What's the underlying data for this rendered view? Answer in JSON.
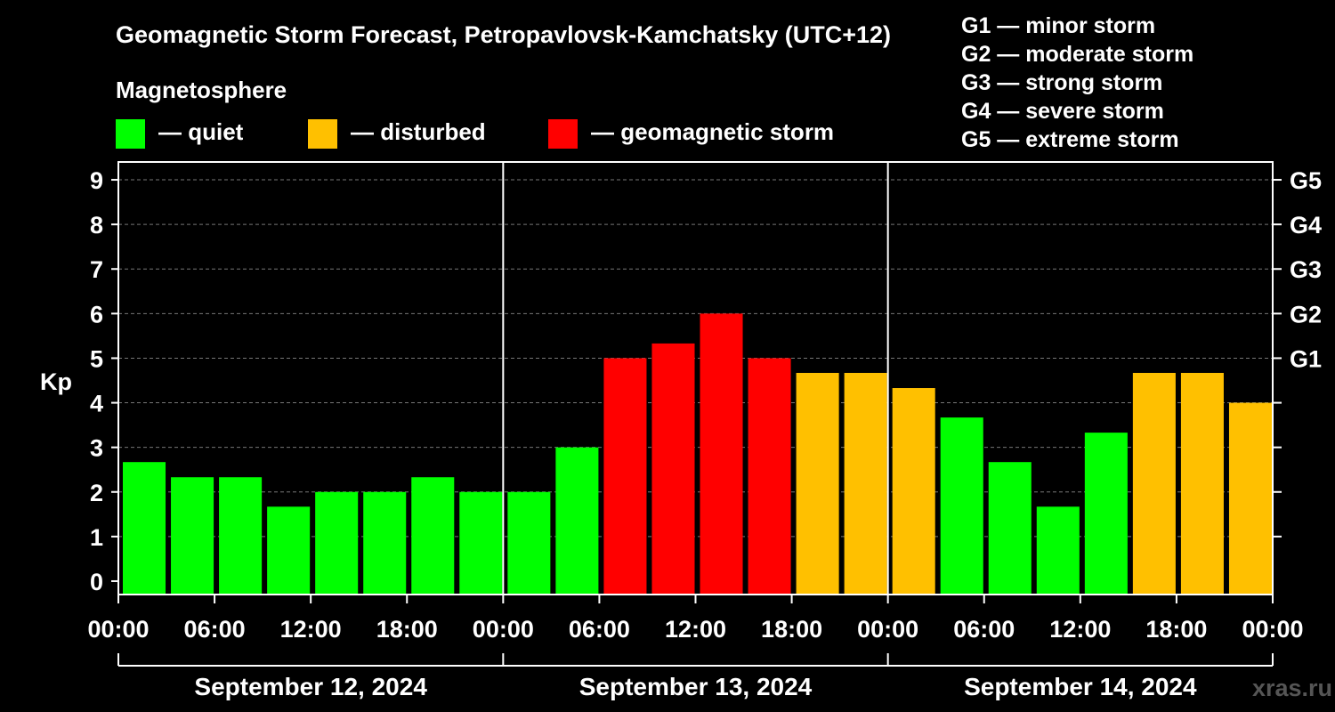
{
  "chart_data": {
    "type": "bar",
    "title": "Geomagnetic Storm Forecast, Petropavlovsk-Kamchatsky (UTC+12)",
    "ylabel": "Kp",
    "ylim": [
      -0.3,
      9.4
    ],
    "y_ticks": [
      "0",
      "1",
      "2",
      "3",
      "4",
      "5",
      "6",
      "7",
      "8",
      "9"
    ],
    "right_axis_labels": [
      {
        "kp": 5,
        "label": "G1"
      },
      {
        "kp": 6,
        "label": "G2"
      },
      {
        "kp": 7,
        "label": "G3"
      },
      {
        "kp": 8,
        "label": "G4"
      },
      {
        "kp": 9,
        "label": "G5"
      }
    ],
    "x_tick_labels": [
      "00:00",
      "06:00",
      "12:00",
      "18:00",
      "00:00",
      "06:00",
      "12:00",
      "18:00",
      "00:00",
      "06:00",
      "12:00",
      "18:00",
      "00:00"
    ],
    "days": [
      "September 12, 2024",
      "September 13, 2024",
      "September 14, 2024"
    ],
    "interval_hours": 3,
    "values": [
      2.67,
      2.33,
      2.33,
      1.67,
      2.0,
      2.0,
      2.33,
      2.0,
      2.0,
      3.0,
      5.0,
      5.33,
      6.0,
      5.0,
      4.67,
      4.67,
      4.33,
      3.67,
      2.67,
      1.67,
      3.33,
      4.67,
      4.67,
      4.0
    ],
    "categories": [
      "quiet",
      "quiet",
      "quiet",
      "quiet",
      "quiet",
      "quiet",
      "quiet",
      "quiet",
      "quiet",
      "quiet",
      "storm",
      "storm",
      "storm",
      "storm",
      "disturbed",
      "disturbed",
      "disturbed",
      "quiet",
      "quiet",
      "quiet",
      "quiet",
      "disturbed",
      "disturbed",
      "disturbed"
    ],
    "legend": {
      "title": "Magnetosphere",
      "items": [
        {
          "key": "quiet",
          "label": "— quiet",
          "color": "#00ff00"
        },
        {
          "key": "disturbed",
          "label": "— disturbed",
          "color": "#ffc000"
        },
        {
          "key": "storm",
          "label": "— geomagnetic storm",
          "color": "#ff0000"
        }
      ]
    },
    "storm_scale": [
      "G1 — minor storm",
      "G2 — moderate storm",
      "G3 — strong storm",
      "G4 — severe storm",
      "G5 — extreme storm"
    ],
    "grid": true
  },
  "watermark": "xras.ru"
}
